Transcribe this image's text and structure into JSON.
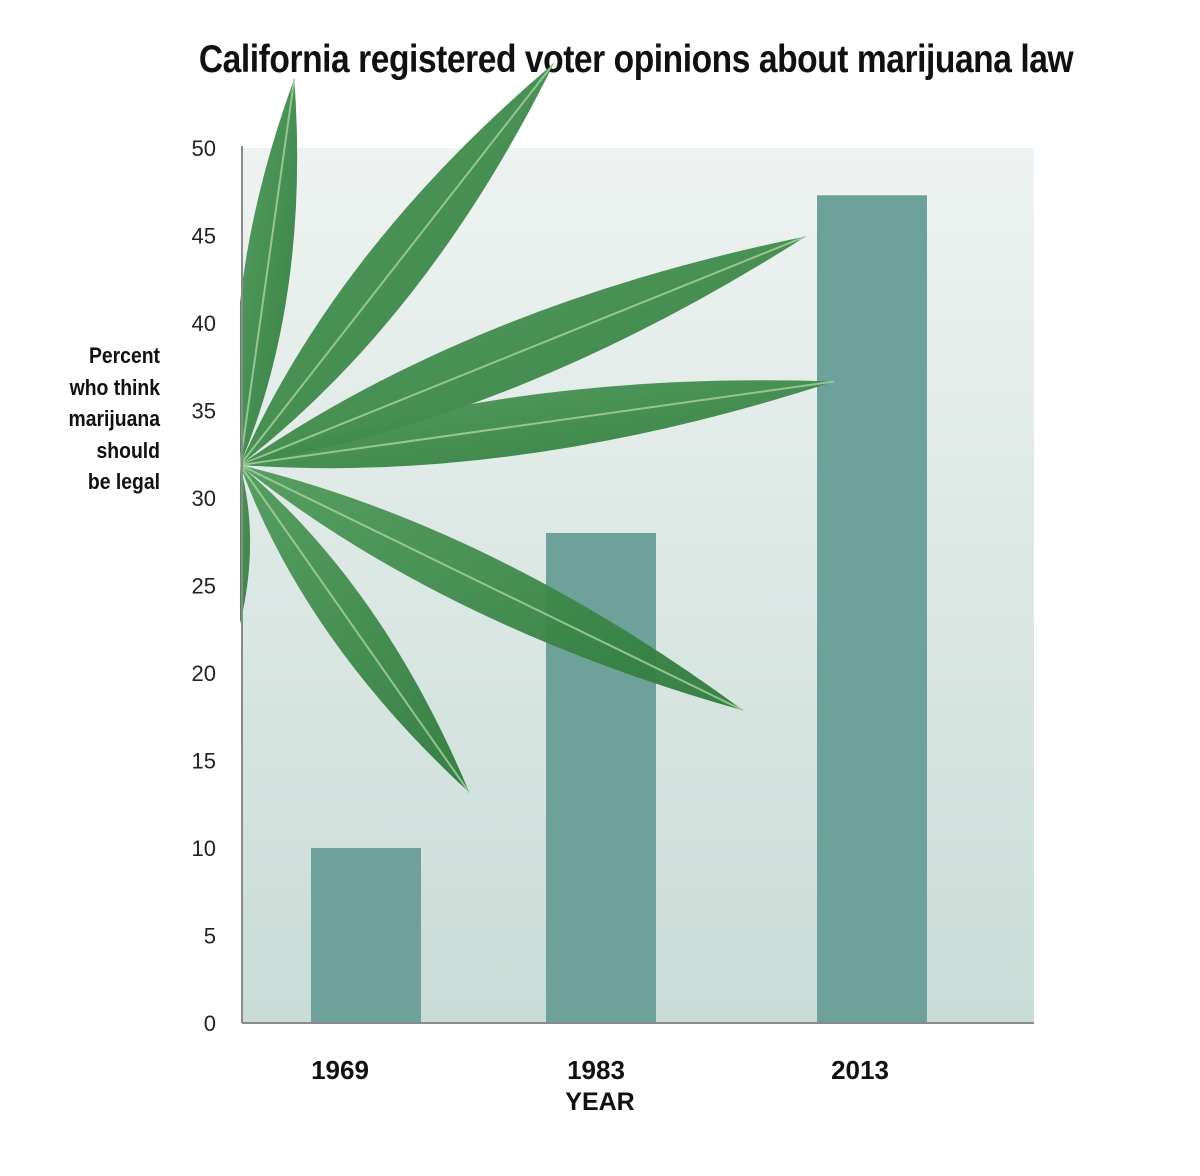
{
  "chart_data": {
    "type": "bar",
    "title": "California registered voter opinions about marijuana law",
    "ylabel": [
      "Percent",
      "who think",
      "marijuana",
      "should",
      "be legal"
    ],
    "xlabel": "YEAR",
    "categories": [
      "1969",
      "1983",
      "2013"
    ],
    "values": [
      10,
      28,
      47.3
    ],
    "ylim": [
      0,
      50
    ],
    "yticks": [
      "0",
      "5",
      "10",
      "15",
      "20",
      "25",
      "30",
      "35",
      "40",
      "45",
      "50"
    ],
    "grid": false,
    "bar_color": "#6fa19b",
    "background_gradient": [
      "#eef3f1",
      "#c9dcd7"
    ],
    "decoration": "cannabis-leaf-image"
  }
}
